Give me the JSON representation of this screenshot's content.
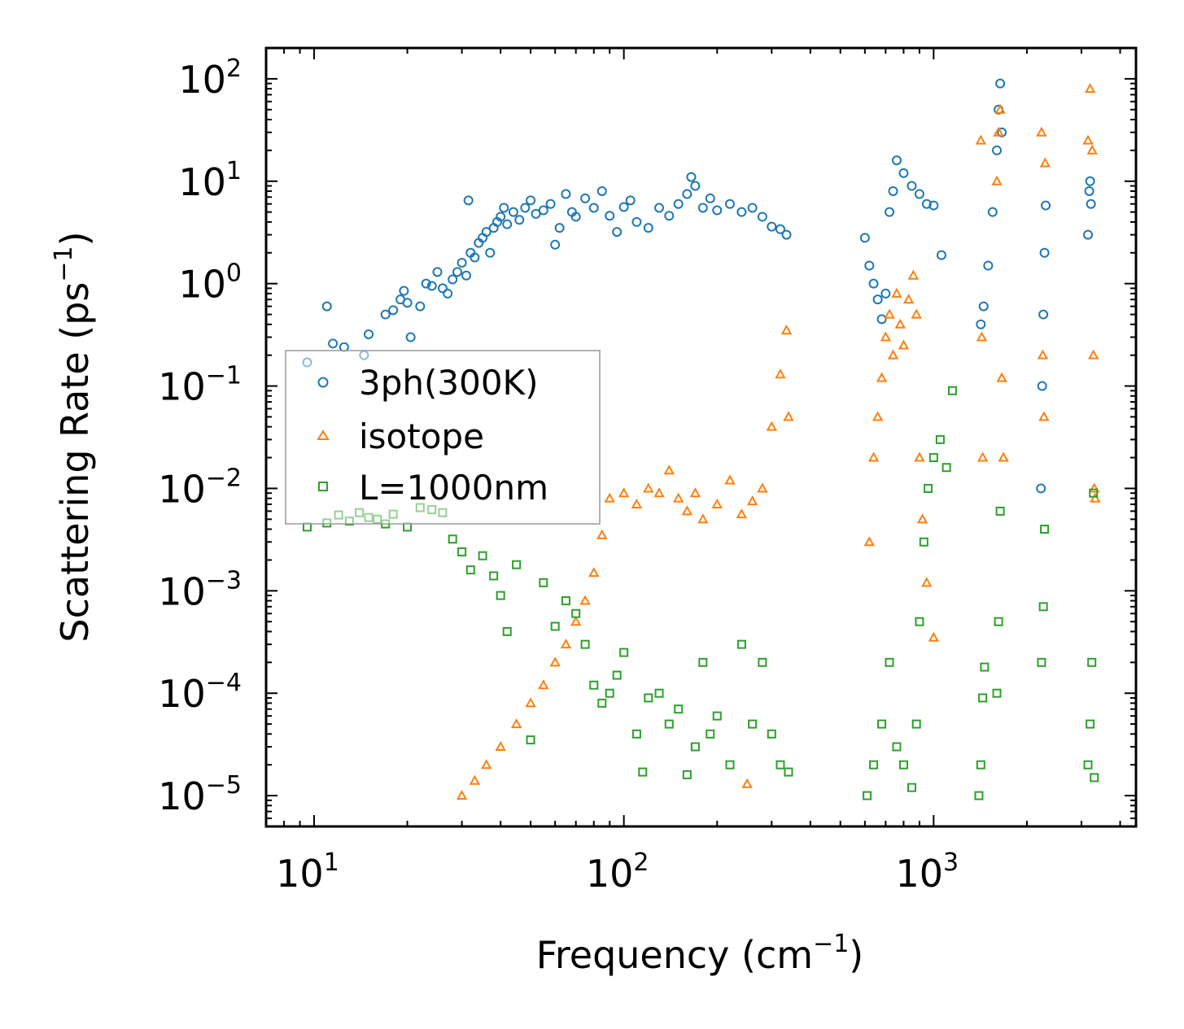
{
  "chart_data": {
    "type": "scatter",
    "xscale": "log",
    "yscale": "log",
    "xlim": [
      7,
      4500
    ],
    "ylim": [
      5e-06,
      200
    ],
    "xlabel": "Frequency (cm",
    "xlabel_sup": "−1",
    "xlabel_end": ")",
    "ylabel": "Scattering Rate (ps",
    "ylabel_sup": "−1",
    "ylabel_end": ")",
    "x_ticks": [
      {
        "value": 10,
        "base": "10",
        "exp": "1"
      },
      {
        "value": 100,
        "base": "10",
        "exp": "2"
      },
      {
        "value": 1000,
        "base": "10",
        "exp": "3"
      }
    ],
    "y_ticks": [
      {
        "value": 100,
        "base": "10",
        "exp": "2"
      },
      {
        "value": 10,
        "base": "10",
        "exp": "1"
      },
      {
        "value": 1,
        "base": "10",
        "exp": "0"
      },
      {
        "value": 0.1,
        "base": "10",
        "exp": "−1"
      },
      {
        "value": 0.01,
        "base": "10",
        "exp": "−2"
      },
      {
        "value": 0.001,
        "base": "10",
        "exp": "−3"
      },
      {
        "value": 0.0001,
        "base": "10",
        "exp": "−4"
      },
      {
        "value": 1e-05,
        "base": "10",
        "exp": "−5"
      }
    ],
    "legend_position": "center-left",
    "series": [
      {
        "name": "3ph(300K)",
        "marker": "circle",
        "color": "#1f77b4",
        "points": [
          [
            9.5,
            0.17
          ],
          [
            11,
            0.6
          ],
          [
            11.5,
            0.26
          ],
          [
            12.5,
            0.24
          ],
          [
            14.5,
            0.2
          ],
          [
            15,
            0.32
          ],
          [
            17,
            0.5
          ],
          [
            18,
            0.55
          ],
          [
            19,
            0.7
          ],
          [
            19.5,
            0.85
          ],
          [
            20,
            0.65
          ],
          [
            20.5,
            0.3
          ],
          [
            22,
            0.6
          ],
          [
            23,
            1.0
          ],
          [
            24,
            0.95
          ],
          [
            25,
            1.3
          ],
          [
            26,
            0.9
          ],
          [
            27,
            0.8
          ],
          [
            28,
            1.1
          ],
          [
            29,
            1.3
          ],
          [
            30,
            1.6
          ],
          [
            31,
            1.2
          ],
          [
            31.5,
            6.5
          ],
          [
            32,
            2.0
          ],
          [
            33,
            1.8
          ],
          [
            34,
            2.5
          ],
          [
            35,
            2.8
          ],
          [
            36,
            3.2
          ],
          [
            37,
            2.0
          ],
          [
            38,
            3.5
          ],
          [
            39,
            4.0
          ],
          [
            40,
            4.5
          ],
          [
            41,
            5.5
          ],
          [
            42,
            3.8
          ],
          [
            44,
            5.0
          ],
          [
            46,
            4.2
          ],
          [
            48,
            5.5
          ],
          [
            50,
            6.5
          ],
          [
            52,
            4.8
          ],
          [
            55,
            5.2
          ],
          [
            58,
            6.0
          ],
          [
            60,
            2.4
          ],
          [
            62,
            3.5
          ],
          [
            65,
            7.5
          ],
          [
            68,
            5.0
          ],
          [
            70,
            4.5
          ],
          [
            75,
            6.8
          ],
          [
            80,
            5.5
          ],
          [
            85,
            8.0
          ],
          [
            90,
            4.6
          ],
          [
            95,
            3.2
          ],
          [
            100,
            5.6
          ],
          [
            105,
            6.5
          ],
          [
            110,
            4.0
          ],
          [
            120,
            3.5
          ],
          [
            130,
            5.5
          ],
          [
            140,
            4.6
          ],
          [
            150,
            6.0
          ],
          [
            160,
            7.5
          ],
          [
            165,
            11.0
          ],
          [
            170,
            9.0
          ],
          [
            180,
            5.5
          ],
          [
            190,
            6.8
          ],
          [
            200,
            5.2
          ],
          [
            220,
            6.0
          ],
          [
            240,
            5.0
          ],
          [
            260,
            5.5
          ],
          [
            280,
            4.5
          ],
          [
            300,
            3.6
          ],
          [
            320,
            3.4
          ],
          [
            335,
            3.0
          ],
          [
            600,
            2.8
          ],
          [
            620,
            1.5
          ],
          [
            640,
            1.0
          ],
          [
            660,
            0.7
          ],
          [
            680,
            0.45
          ],
          [
            700,
            0.8
          ],
          [
            720,
            5.0
          ],
          [
            740,
            8.0
          ],
          [
            760,
            16
          ],
          [
            800,
            12
          ],
          [
            850,
            9.0
          ],
          [
            900,
            7.5
          ],
          [
            950,
            6.0
          ],
          [
            1000,
            5.8
          ],
          [
            1060,
            1.9
          ],
          [
            1420,
            0.4
          ],
          [
            1450,
            0.6
          ],
          [
            1500,
            1.5
          ],
          [
            1550,
            5.0
          ],
          [
            1600,
            20
          ],
          [
            1620,
            50
          ],
          [
            1640,
            90
          ],
          [
            1660,
            30
          ],
          [
            2220,
            0.01
          ],
          [
            2240,
            0.1
          ],
          [
            2260,
            0.5
          ],
          [
            2280,
            2.0
          ],
          [
            2300,
            5.8
          ],
          [
            3150,
            3.0
          ],
          [
            3180,
            8.0
          ],
          [
            3200,
            10.0
          ],
          [
            3220,
            6.0
          ]
        ]
      },
      {
        "name": "isotope",
        "marker": "triangle",
        "color": "#ff7f0e",
        "points": [
          [
            30,
            1e-05
          ],
          [
            33,
            1.4e-05
          ],
          [
            36,
            2e-05
          ],
          [
            40,
            3e-05
          ],
          [
            45,
            5e-05
          ],
          [
            50,
            8e-05
          ],
          [
            55,
            0.00012
          ],
          [
            60,
            0.0002
          ],
          [
            65,
            0.0003
          ],
          [
            70,
            0.0005
          ],
          [
            75,
            0.0008
          ],
          [
            80,
            0.0015
          ],
          [
            85,
            0.0035
          ],
          [
            90,
            0.008
          ],
          [
            100,
            0.009
          ],
          [
            110,
            0.007
          ],
          [
            120,
            0.01
          ],
          [
            130,
            0.009
          ],
          [
            140,
            0.015
          ],
          [
            150,
            0.008
          ],
          [
            160,
            0.006
          ],
          [
            170,
            0.009
          ],
          [
            180,
            0.005
          ],
          [
            200,
            0.007
          ],
          [
            220,
            0.012
          ],
          [
            240,
            0.0056
          ],
          [
            250,
            1.3e-05
          ],
          [
            260,
            0.0075
          ],
          [
            280,
            0.01
          ],
          [
            300,
            0.04
          ],
          [
            320,
            0.13
          ],
          [
            335,
            0.35
          ],
          [
            340,
            0.05
          ],
          [
            620,
            0.003
          ],
          [
            640,
            0.02
          ],
          [
            660,
            0.05
          ],
          [
            680,
            0.12
          ],
          [
            700,
            0.3
          ],
          [
            720,
            0.5
          ],
          [
            740,
            0.2
          ],
          [
            760,
            0.8
          ],
          [
            780,
            0.4
          ],
          [
            800,
            0.25
          ],
          [
            830,
            0.7
          ],
          [
            860,
            1.2
          ],
          [
            880,
            0.5
          ],
          [
            900,
            0.02
          ],
          [
            920,
            0.005
          ],
          [
            950,
            0.0012
          ],
          [
            1000,
            0.00035
          ],
          [
            1420,
            25
          ],
          [
            1430,
            0.3
          ],
          [
            1440,
            0.02
          ],
          [
            1600,
            10
          ],
          [
            1620,
            30
          ],
          [
            1640,
            50
          ],
          [
            1660,
            0.12
          ],
          [
            1680,
            0.02
          ],
          [
            2230,
            30
          ],
          [
            2250,
            0.2
          ],
          [
            2270,
            0.05
          ],
          [
            2290,
            15
          ],
          [
            3150,
            25
          ],
          [
            3200,
            80
          ],
          [
            3250,
            20
          ],
          [
            3280,
            0.2
          ],
          [
            3300,
            0.01
          ],
          [
            3320,
            0.008
          ]
        ]
      },
      {
        "name": "L=1000nm",
        "marker": "square",
        "color": "#2ca02c",
        "points": [
          [
            9.5,
            0.0042
          ],
          [
            11,
            0.0046
          ],
          [
            12,
            0.0055
          ],
          [
            13,
            0.0048
          ],
          [
            14,
            0.0058
          ],
          [
            15,
            0.0052
          ],
          [
            16,
            0.005
          ],
          [
            17,
            0.0045
          ],
          [
            18,
            0.0056
          ],
          [
            20,
            0.0042
          ],
          [
            22,
            0.0065
          ],
          [
            24,
            0.0062
          ],
          [
            26,
            0.0058
          ],
          [
            28,
            0.0032
          ],
          [
            30,
            0.0024
          ],
          [
            32,
            0.0016
          ],
          [
            35,
            0.0022
          ],
          [
            38,
            0.0014
          ],
          [
            40,
            0.0009
          ],
          [
            42,
            0.0004
          ],
          [
            45,
            0.0018
          ],
          [
            50,
            3.5e-05
          ],
          [
            55,
            0.0012
          ],
          [
            60,
            0.00045
          ],
          [
            65,
            0.0008
          ],
          [
            70,
            0.0006
          ],
          [
            75,
            0.0003
          ],
          [
            80,
            0.00012
          ],
          [
            85,
            8e-05
          ],
          [
            90,
            0.0001
          ],
          [
            95,
            0.00015
          ],
          [
            100,
            0.00025
          ],
          [
            110,
            4e-05
          ],
          [
            115,
            1.7e-05
          ],
          [
            120,
            9e-05
          ],
          [
            130,
            0.0001
          ],
          [
            140,
            5e-05
          ],
          [
            150,
            7e-05
          ],
          [
            160,
            1.6e-05
          ],
          [
            170,
            3e-05
          ],
          [
            180,
            0.0002
          ],
          [
            190,
            4e-05
          ],
          [
            200,
            6e-05
          ],
          [
            220,
            2e-05
          ],
          [
            240,
            0.0003
          ],
          [
            260,
            5e-05
          ],
          [
            280,
            0.0002
          ],
          [
            300,
            4e-05
          ],
          [
            320,
            2e-05
          ],
          [
            340,
            1.7e-05
          ],
          [
            610,
            1e-05
          ],
          [
            640,
            2e-05
          ],
          [
            680,
            5e-05
          ],
          [
            720,
            0.0002
          ],
          [
            760,
            3e-05
          ],
          [
            800,
            2e-05
          ],
          [
            850,
            1.2e-05
          ],
          [
            880,
            5e-05
          ],
          [
            900,
            0.0005
          ],
          [
            930,
            0.003
          ],
          [
            960,
            0.01
          ],
          [
            1000,
            0.02
          ],
          [
            1050,
            0.03
          ],
          [
            1100,
            0.016
          ],
          [
            1150,
            0.09
          ],
          [
            1400,
            1e-05
          ],
          [
            1420,
            2e-05
          ],
          [
            1440,
            9e-05
          ],
          [
            1460,
            0.00018
          ],
          [
            1600,
            0.0001
          ],
          [
            1620,
            0.0005
          ],
          [
            1640,
            0.006
          ],
          [
            2230,
            0.0002
          ],
          [
            2260,
            0.0007
          ],
          [
            2280,
            0.004
          ],
          [
            3150,
            2e-05
          ],
          [
            3200,
            5e-05
          ],
          [
            3240,
            0.0002
          ],
          [
            3280,
            0.009
          ],
          [
            3300,
            1.5e-05
          ]
        ]
      }
    ]
  }
}
